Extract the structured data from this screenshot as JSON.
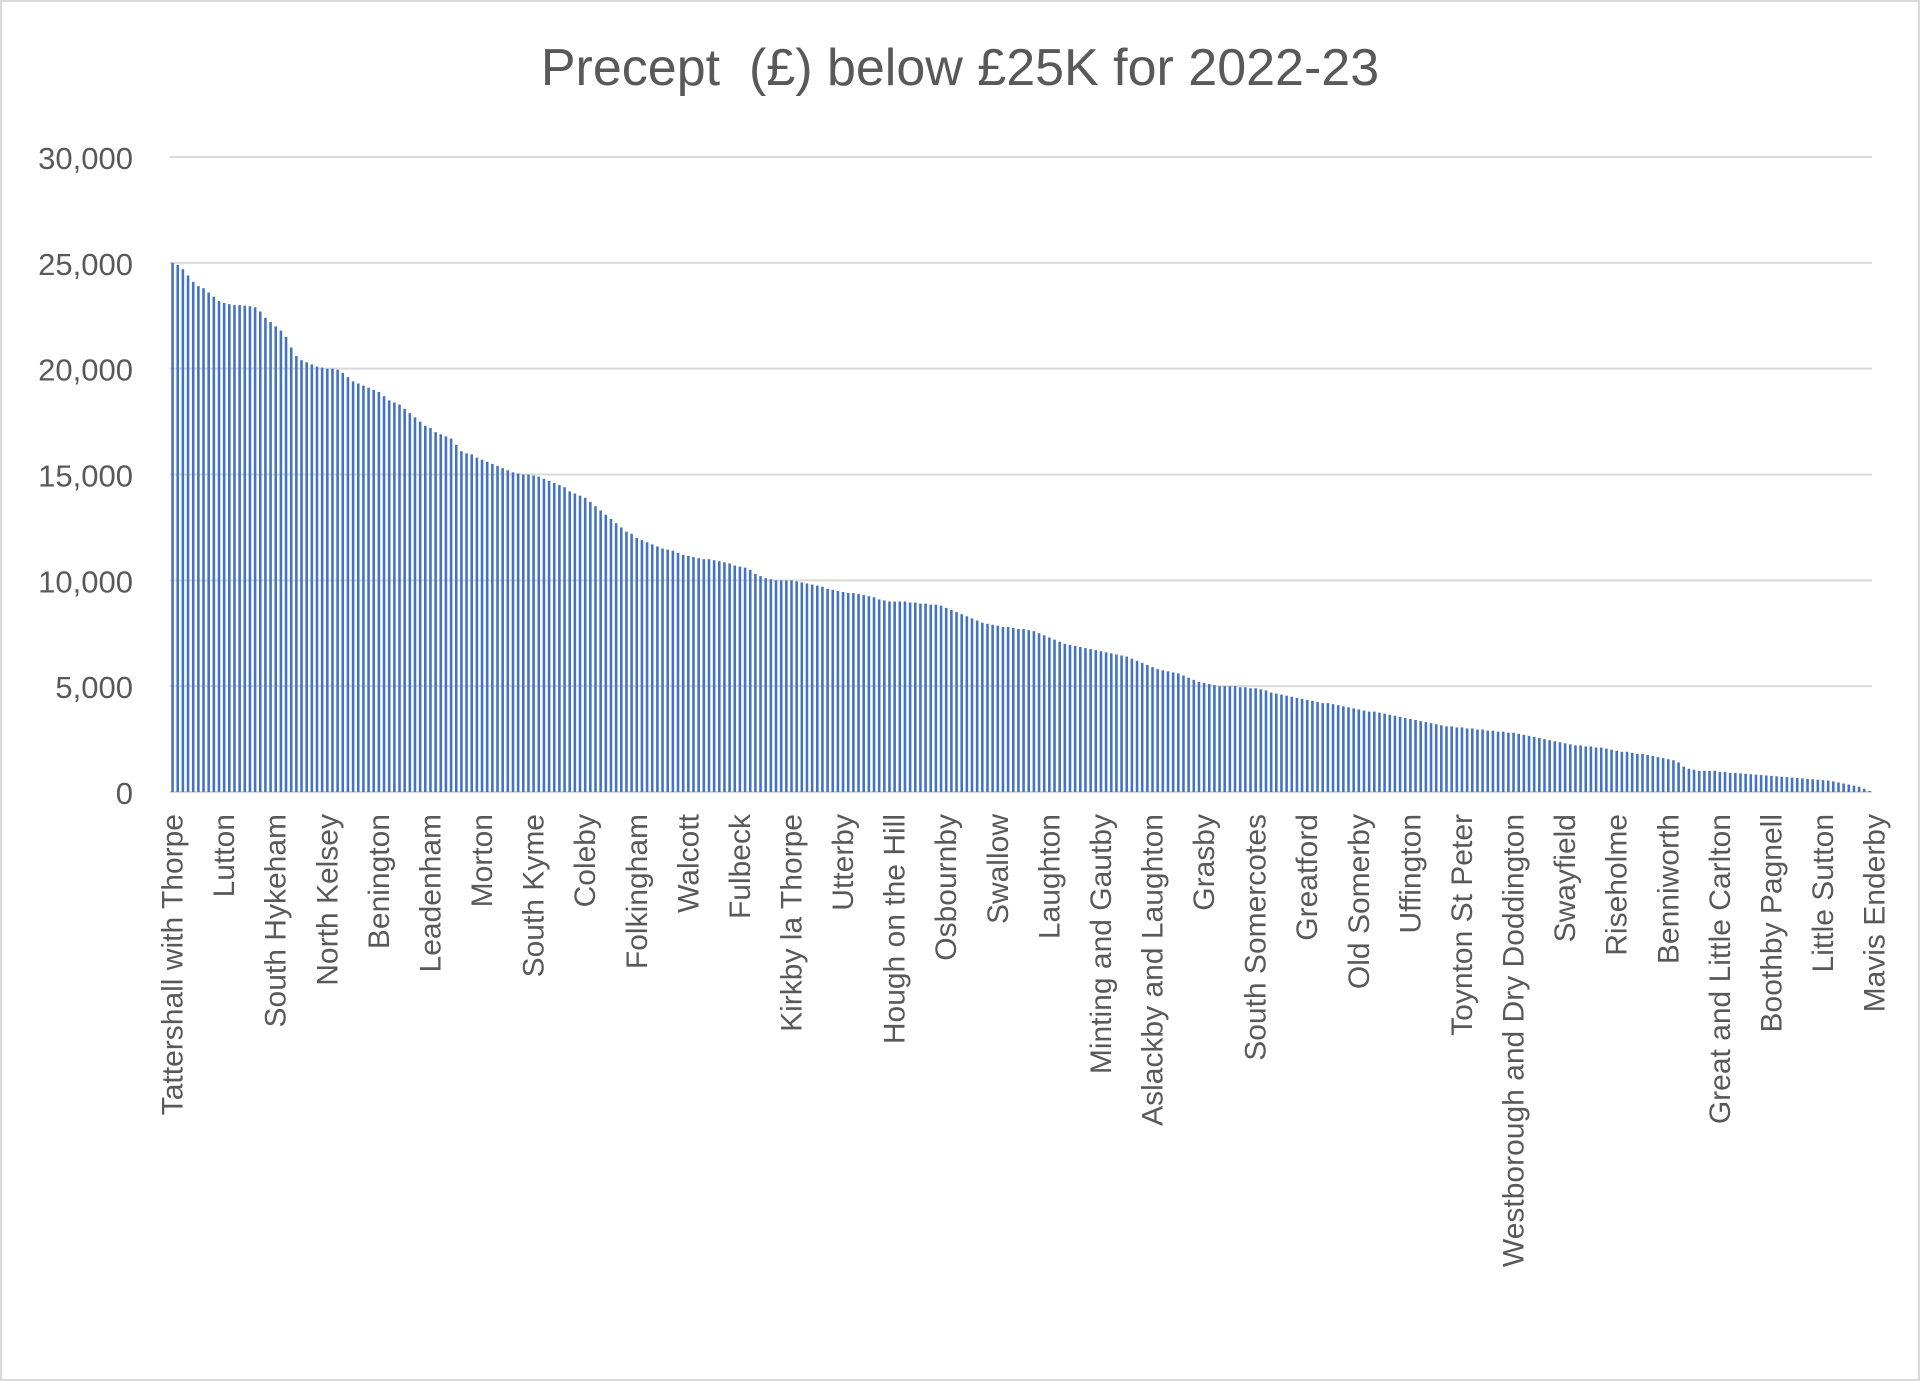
{
  "chart_data": {
    "type": "bar",
    "title": "Precept  (£) below £25K for 2022-23",
    "xlabel": "",
    "ylabel": "",
    "ylim": [
      0,
      30000
    ],
    "yticks": [
      0,
      5000,
      10000,
      15000,
      20000,
      25000,
      30000
    ],
    "ytick_labels": [
      "0",
      "5,000",
      "10,000",
      "15,000",
      "20,000",
      "25,000",
      "30,000"
    ],
    "grid": true,
    "legend": "none",
    "bar_color": "#4472c4",
    "gridline_color": "#d9d9d9",
    "text_color": "#595959",
    "visible_category_labels": [
      "Tattershall with Thorpe",
      "Lutton",
      "South Hykeham",
      "North Kelsey",
      "Benington",
      "Leadenham",
      "Morton",
      "South Kyme",
      "Coleby",
      "Folkingham",
      "Walcott",
      "Fulbeck",
      "Kirkby la Thorpe",
      "Utterby",
      "Hough on the Hill",
      "Osbournby",
      "Swallow",
      "Laughton",
      "Minting and Gautby",
      "Aslackby and Laughton",
      "Grasby",
      "South Somercotes",
      "Greatford",
      "Old Somerby",
      "Uffington",
      "Toynton St Peter",
      "Westborough and Dry Doddington",
      "Swayfield",
      "Riseholme",
      "Benniworth",
      "Great and Little Carlton",
      "Boothby Pagnell",
      "Little Sutton",
      "Mavis Enderby"
    ],
    "label_every": 10,
    "values": [
      25000,
      24900,
      24700,
      24400,
      24100,
      23900,
      23800,
      23600,
      23400,
      23200,
      23100,
      23050,
      23000,
      23000,
      22980,
      22950,
      22900,
      22700,
      22400,
      22200,
      22000,
      21800,
      21500,
      21000,
      20600,
      20400,
      20300,
      20200,
      20100,
      20050,
      20000,
      20000,
      19950,
      19800,
      19600,
      19400,
      19300,
      19200,
      19100,
      19000,
      18900,
      18700,
      18500,
      18400,
      18300,
      18100,
      17900,
      17700,
      17500,
      17300,
      17200,
      17000,
      16900,
      16800,
      16700,
      16400,
      16100,
      16000,
      15950,
      15800,
      15700,
      15600,
      15500,
      15400,
      15300,
      15200,
      15100,
      15050,
      15000,
      15000,
      14950,
      14900,
      14800,
      14700,
      14600,
      14500,
      14400,
      14200,
      14100,
      14000,
      13900,
      13700,
      13500,
      13300,
      13100,
      12900,
      12700,
      12500,
      12300,
      12200,
      12000,
      11900,
      11800,
      11700,
      11600,
      11500,
      11450,
      11400,
      11300,
      11200,
      11150,
      11100,
      11050,
      11000,
      11000,
      10950,
      10900,
      10850,
      10800,
      10700,
      10650,
      10600,
      10500,
      10300,
      10200,
      10100,
      10050,
      10000,
      10000,
      10000,
      10000,
      9950,
      9900,
      9850,
      9800,
      9750,
      9700,
      9600,
      9550,
      9500,
      9450,
      9400,
      9400,
      9350,
      9300,
      9250,
      9200,
      9100,
      9050,
      9000,
      9000,
      9000,
      9000,
      8950,
      8950,
      8900,
      8900,
      8850,
      8850,
      8800,
      8700,
      8600,
      8500,
      8400,
      8300,
      8200,
      8100,
      8000,
      7950,
      7900,
      7850,
      7800,
      7800,
      7750,
      7700,
      7700,
      7650,
      7600,
      7500,
      7400,
      7300,
      7200,
      7100,
      7000,
      6950,
      6900,
      6850,
      6800,
      6750,
      6700,
      6650,
      6600,
      6550,
      6500,
      6450,
      6400,
      6300,
      6200,
      6100,
      6000,
      5900,
      5800,
      5750,
      5700,
      5650,
      5600,
      5500,
      5400,
      5300,
      5200,
      5150,
      5100,
      5050,
      5000,
      5000,
      5000,
      5000,
      4950,
      4950,
      4900,
      4900,
      4850,
      4800,
      4700,
      4650,
      4600,
      4550,
      4500,
      4450,
      4400,
      4350,
      4300,
      4250,
      4200,
      4200,
      4150,
      4100,
      4050,
      4000,
      3950,
      3900,
      3850,
      3800,
      3800,
      3750,
      3700,
      3650,
      3600,
      3550,
      3500,
      3450,
      3400,
      3350,
      3300,
      3250,
      3200,
      3150,
      3100,
      3100,
      3050,
      3050,
      3000,
      3000,
      2950,
      2950,
      2900,
      2900,
      2850,
      2850,
      2800,
      2800,
      2750,
      2700,
      2650,
      2600,
      2550,
      2500,
      2450,
      2400,
      2350,
      2300,
      2250,
      2200,
      2200,
      2150,
      2150,
      2100,
      2100,
      2050,
      2000,
      1950,
      1900,
      1900,
      1850,
      1800,
      1800,
      1750,
      1700,
      1650,
      1600,
      1550,
      1500,
      1400,
      1200,
      1100,
      1050,
      1000,
      1000,
      1000,
      1000,
      950,
      950,
      900,
      900,
      880,
      860,
      840,
      820,
      800,
      780,
      760,
      740,
      720,
      700,
      680,
      660,
      640,
      620,
      600,
      580,
      560,
      540,
      500,
      450,
      400,
      350,
      300,
      250,
      150,
      50
    ]
  }
}
